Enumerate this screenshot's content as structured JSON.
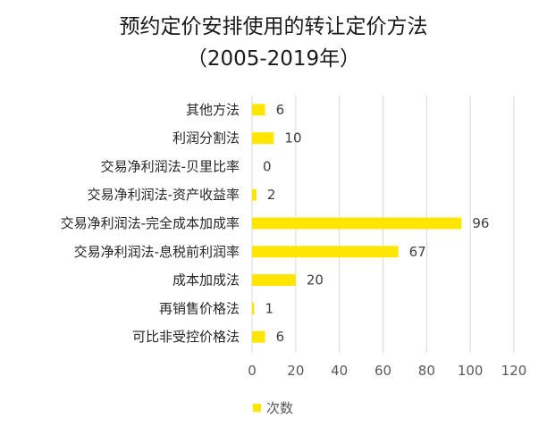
{
  "chart_data": {
    "type": "bar",
    "orientation": "horizontal",
    "title": "预约定价安排使用的转让定价方法",
    "subtitle": "（2005-2019年）",
    "categories": [
      "其他方法",
      "利润分割法",
      "交易净利润法-贝里比率",
      "交易净利润法-资产收益率",
      "交易净利润法-完全成本加成率",
      "交易净利润法-息税前利润率",
      "成本加成法",
      "再销售价格法",
      "可比非受控价格法"
    ],
    "series": [
      {
        "name": "次数",
        "values": [
          6,
          10,
          0,
          2,
          96,
          67,
          20,
          1,
          6
        ]
      }
    ],
    "xlim": [
      0,
      120
    ],
    "xticks": [
      "0",
      "20",
      "40",
      "60",
      "80",
      "100",
      "120"
    ],
    "data_labels": [
      "6",
      "10",
      "0",
      "2",
      "96",
      "67",
      "20",
      "1",
      "6"
    ],
    "grid": "vertical",
    "legend": "bottom",
    "bar_color": "#FFE600"
  }
}
